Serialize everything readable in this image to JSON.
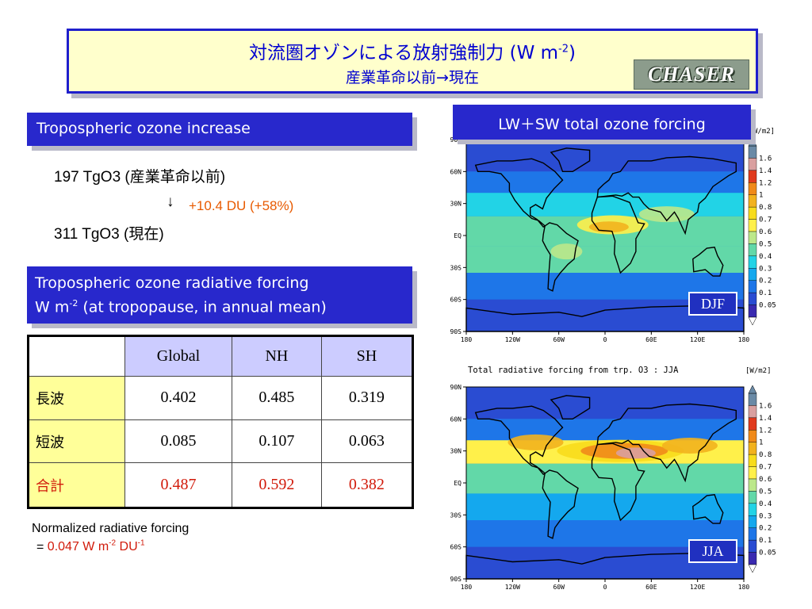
{
  "title": {
    "main": "対流圏オゾンによる放射強制力 (W m",
    "main_sup": "-2",
    "main_close": ")",
    "sub": "産業革命以前→現在",
    "logo": "CHASER"
  },
  "ozone": {
    "banner": "Tropospheric ozone increase",
    "line1": "197 TgO3 (産業革命以前)",
    "arrow": "↓",
    "change": "+10.4 DU (+58%)",
    "line2": "311 TgO3 (現在)"
  },
  "rf": {
    "banner_line1": "Tropospheric ozone radiative forcing",
    "banner_w": "W m",
    "banner_sup": "-2",
    "banner_rest": " (at tropopause, in annual mean)"
  },
  "table": {
    "headers": [
      "",
      "Global",
      "NH",
      "SH"
    ],
    "rows": [
      {
        "label": "長波",
        "values": [
          "0.402",
          "0.485",
          "0.319"
        ]
      },
      {
        "label": "短波",
        "values": [
          "0.085",
          "0.107",
          "0.063"
        ]
      },
      {
        "label": "合計",
        "values": [
          "0.487",
          "0.592",
          "0.382"
        ]
      }
    ]
  },
  "normalized": {
    "line1": "Normalized radiative forcing",
    "eq": "= ",
    "value": "0.047 W m",
    "sup1": "-2",
    "mid": " DU",
    "sup2": "-1"
  },
  "maps": {
    "banner": "LW＋SW  total ozone forcing",
    "jja_title": "Total radiative forcing from trp. O3 : JJA",
    "unit": "[W/m2]",
    "unit_top": "W/m2]",
    "lat_labels": [
      "90N",
      "60N",
      "30N",
      "EQ",
      "30S",
      "60S",
      "90S"
    ],
    "lon_labels": [
      "180",
      "120W",
      "60W",
      "0",
      "60E",
      "120E",
      "180"
    ],
    "colorbar_labels": [
      "1.6",
      "1.4",
      "1.2",
      "1",
      "0.8",
      "0.7",
      "0.6",
      "0.5",
      "0.4",
      "0.3",
      "0.2",
      "0.1",
      "0.05"
    ],
    "colorbar_colors": [
      "#6a8aa6",
      "#d9a0a0",
      "#e03a1e",
      "#f08a1a",
      "#f2b21e",
      "#f8dc1c",
      "#fff04a",
      "#bce88a",
      "#62d8a8",
      "#22d3e6",
      "#14a8ee",
      "#1e76e8",
      "#2a4cd2",
      "#3a2ab0"
    ],
    "seasons": [
      "DJF",
      "JJA"
    ]
  }
}
